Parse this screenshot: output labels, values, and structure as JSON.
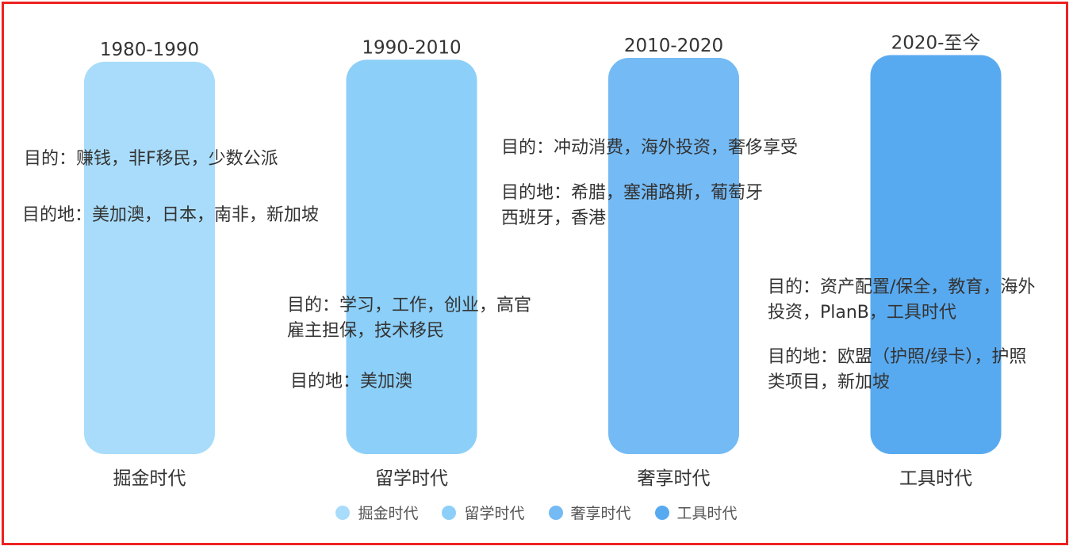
{
  "chart_data": {
    "type": "bar",
    "title": "",
    "xlabel": "",
    "ylabel": "",
    "grid": false,
    "legend_position": "bottom",
    "categories": [
      "掘金时代",
      "留学时代",
      "奢享时代",
      "工具时代"
    ],
    "periods": [
      "1980-1990",
      "1990-2010",
      "2010-2020",
      "2020-至今"
    ],
    "values": [
      100,
      100.5,
      101,
      101.7
    ],
    "ylim": [
      0,
      102
    ],
    "series": [
      {
        "name": "掘金时代",
        "color": "#a8dcfa"
      },
      {
        "name": "留学时代",
        "color": "#8ccff8"
      },
      {
        "name": "奢享时代",
        "color": "#74baf4"
      },
      {
        "name": "工具时代",
        "color": "#58aaf0"
      }
    ],
    "annotations": [
      {
        "purpose": "目的：赚钱，非F移民，少数公派",
        "destination": [
          "目的地：美加澳，日本，南非，新加坡"
        ]
      },
      {
        "purpose": [
          "目的：学习，工作，创业，高官",
          "雇主担保，技术移民"
        ],
        "destination": [
          "目的地：美加澳"
        ]
      },
      {
        "purpose": [
          "目的：冲动消费，海外投资，奢侈享受"
        ],
        "destination": [
          "目的地：希腊，塞浦路斯，葡萄牙",
          "西班牙，香港"
        ]
      },
      {
        "purpose": [
          "目的：资产配置/保全，教育，海外",
          "投资，PlanB，工具时代"
        ],
        "destination": [
          "目的地：欧盟（护照/绿卡），护照",
          "类项目，新加坡"
        ]
      }
    ]
  }
}
